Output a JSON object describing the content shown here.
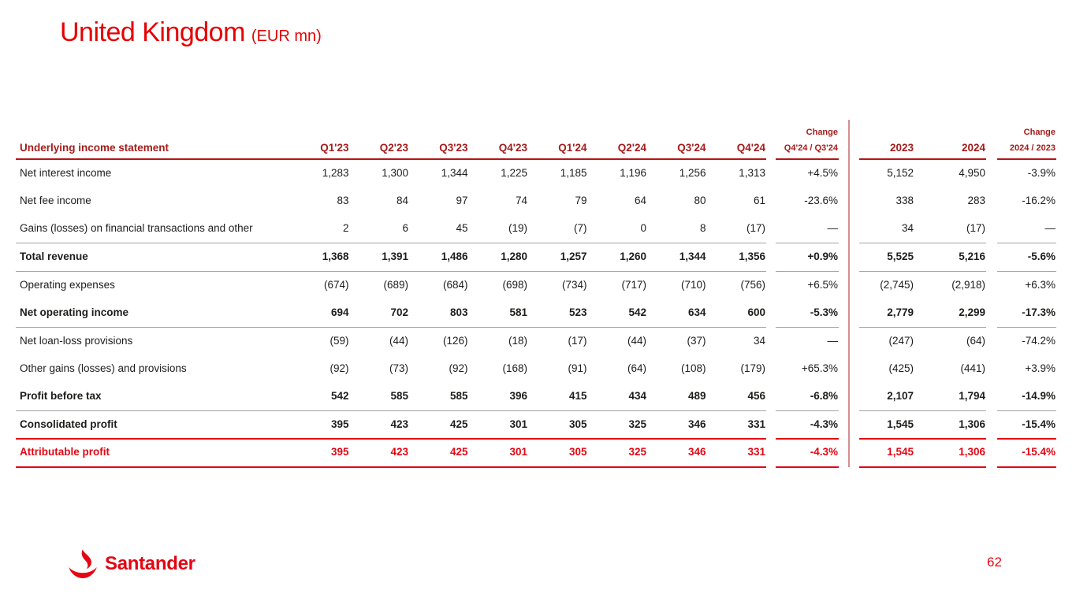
{
  "slide": {
    "title": "United Kingdom",
    "title_suffix": "(EUR mn)",
    "page_number": "62",
    "logo_text": "Santander"
  },
  "table": {
    "header": {
      "label": "Underlying income statement",
      "quarters": [
        "Q1'23",
        "Q2'23",
        "Q3'23",
        "Q4'23",
        "Q1'24",
        "Q2'24",
        "Q3'24",
        "Q4'24"
      ],
      "change_q_title": "Change",
      "change_q_sub": "Q4'24 / Q3'24",
      "years": [
        "2023",
        "2024"
      ],
      "change_y_title": "Change",
      "change_y_sub": "2024 / 2023"
    },
    "rows": [
      {
        "label": "Net interest income",
        "style": "normal",
        "sep": "",
        "quarters": [
          "1,283",
          "1,300",
          "1,344",
          "1,225",
          "1,185",
          "1,196",
          "1,256",
          "1,313"
        ],
        "change_q": "+4.5%",
        "years": [
          "5,152",
          "4,950"
        ],
        "change_y": "-3.9%"
      },
      {
        "label": "Net fee income",
        "style": "normal",
        "sep": "",
        "quarters": [
          "83",
          "84",
          "97",
          "74",
          "79",
          "64",
          "80",
          "61"
        ],
        "change_q": "-23.6%",
        "years": [
          "338",
          "283"
        ],
        "change_y": "-16.2%"
      },
      {
        "label": "Gains (losses) on financial transactions and other",
        "style": "normal",
        "sep": "gray",
        "quarters": [
          "2",
          "6",
          "45",
          "(19)",
          "(7)",
          "0",
          "8",
          "(17)"
        ],
        "change_q": "—",
        "years": [
          "34",
          "(17)"
        ],
        "change_y": "—"
      },
      {
        "label": "Total revenue",
        "style": "bold",
        "sep": "gray",
        "quarters": [
          "1,368",
          "1,391",
          "1,486",
          "1,280",
          "1,257",
          "1,260",
          "1,344",
          "1,356"
        ],
        "change_q": "+0.9%",
        "years": [
          "5,525",
          "5,216"
        ],
        "change_y": "-5.6%"
      },
      {
        "label": "Operating expenses",
        "style": "normal",
        "sep": "",
        "quarters": [
          "(674)",
          "(689)",
          "(684)",
          "(698)",
          "(734)",
          "(717)",
          "(710)",
          "(756)"
        ],
        "change_q": "+6.5%",
        "years": [
          "(2,745)",
          "(2,918)"
        ],
        "change_y": "+6.3%"
      },
      {
        "label": "Net operating income",
        "style": "bold",
        "sep": "gray",
        "quarters": [
          "694",
          "702",
          "803",
          "581",
          "523",
          "542",
          "634",
          "600"
        ],
        "change_q": "-5.3%",
        "years": [
          "2,779",
          "2,299"
        ],
        "change_y": "-17.3%"
      },
      {
        "label": "Net loan-loss provisions",
        "style": "normal",
        "sep": "",
        "quarters": [
          "(59)",
          "(44)",
          "(126)",
          "(18)",
          "(17)",
          "(44)",
          "(37)",
          "34"
        ],
        "change_q": "—",
        "years": [
          "(247)",
          "(64)"
        ],
        "change_y": "-74.2%"
      },
      {
        "label": "Other gains (losses) and provisions",
        "style": "normal",
        "sep": "",
        "quarters": [
          "(92)",
          "(73)",
          "(92)",
          "(168)",
          "(91)",
          "(64)",
          "(108)",
          "(179)"
        ],
        "change_q": "+65.3%",
        "years": [
          "(425)",
          "(441)"
        ],
        "change_y": "+3.9%"
      },
      {
        "label": "Profit before tax",
        "style": "bold",
        "sep": "gray",
        "quarters": [
          "542",
          "585",
          "585",
          "396",
          "415",
          "434",
          "489",
          "456"
        ],
        "change_q": "-6.8%",
        "years": [
          "2,107",
          "1,794"
        ],
        "change_y": "-14.9%"
      },
      {
        "label": "Consolidated profit",
        "style": "bold",
        "sep": "red",
        "quarters": [
          "395",
          "423",
          "425",
          "301",
          "305",
          "325",
          "346",
          "331"
        ],
        "change_q": "-4.3%",
        "years": [
          "1,545",
          "1,306"
        ],
        "change_y": "-15.4%"
      },
      {
        "label": "Attributable profit",
        "style": "bold-red",
        "sep": "red",
        "quarters": [
          "395",
          "423",
          "425",
          "301",
          "305",
          "325",
          "346",
          "331"
        ],
        "change_q": "-4.3%",
        "years": [
          "1,545",
          "1,306"
        ],
        "change_y": "-15.4%"
      }
    ]
  },
  "colors": {
    "title_red": "#e60000",
    "header_dark_red": "#a61b1b",
    "header_underline_red": "#b51414",
    "separator_gray": "#a3a3a3",
    "highlight_red": "#e30613",
    "divider_pink": "#d58e93",
    "body_text": "#1d1d1b"
  }
}
